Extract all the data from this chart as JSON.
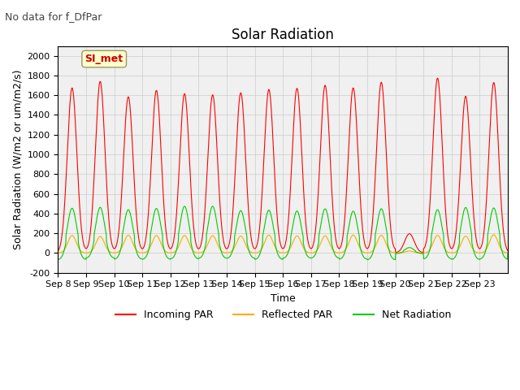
{
  "title": "Solar Radiation",
  "subtitle": "No data for f_DfPar",
  "xlabel": "Time",
  "ylabel": "Solar Radiation (W/m2 or um/m2/s)",
  "ylim": [
    -200,
    2100
  ],
  "yticks": [
    -200,
    0,
    200,
    400,
    600,
    800,
    1000,
    1200,
    1400,
    1600,
    1800,
    2000
  ],
  "x_labels": [
    "Sep 8",
    "Sep 9",
    "Sep 10",
    "Sep 11",
    "Sep 12",
    "Sep 13",
    "Sep 14",
    "Sep 15",
    "Sep 16",
    "Sep 17",
    "Sep 18",
    "Sep 19",
    "Sep 20",
    "Sep 21",
    "Sep 22",
    "Sep 23"
  ],
  "n_days": 16,
  "incoming_peak": 1800,
  "reflected_peak": 190,
  "net_peak": 480,
  "incoming_color": "#ff0000",
  "reflected_color": "#ffaa00",
  "net_color": "#00cc00",
  "background_color": "#ffffff",
  "plot_bg_color": "#f0f0f0",
  "grid_color": "#cccccc",
  "legend_label_incoming": "Incoming PAR",
  "legend_label_reflected": "Reflected PAR",
  "legend_label_net": "Net Radiation",
  "site_label": "SI_met",
  "title_fontsize": 12,
  "label_fontsize": 9,
  "tick_fontsize": 8
}
